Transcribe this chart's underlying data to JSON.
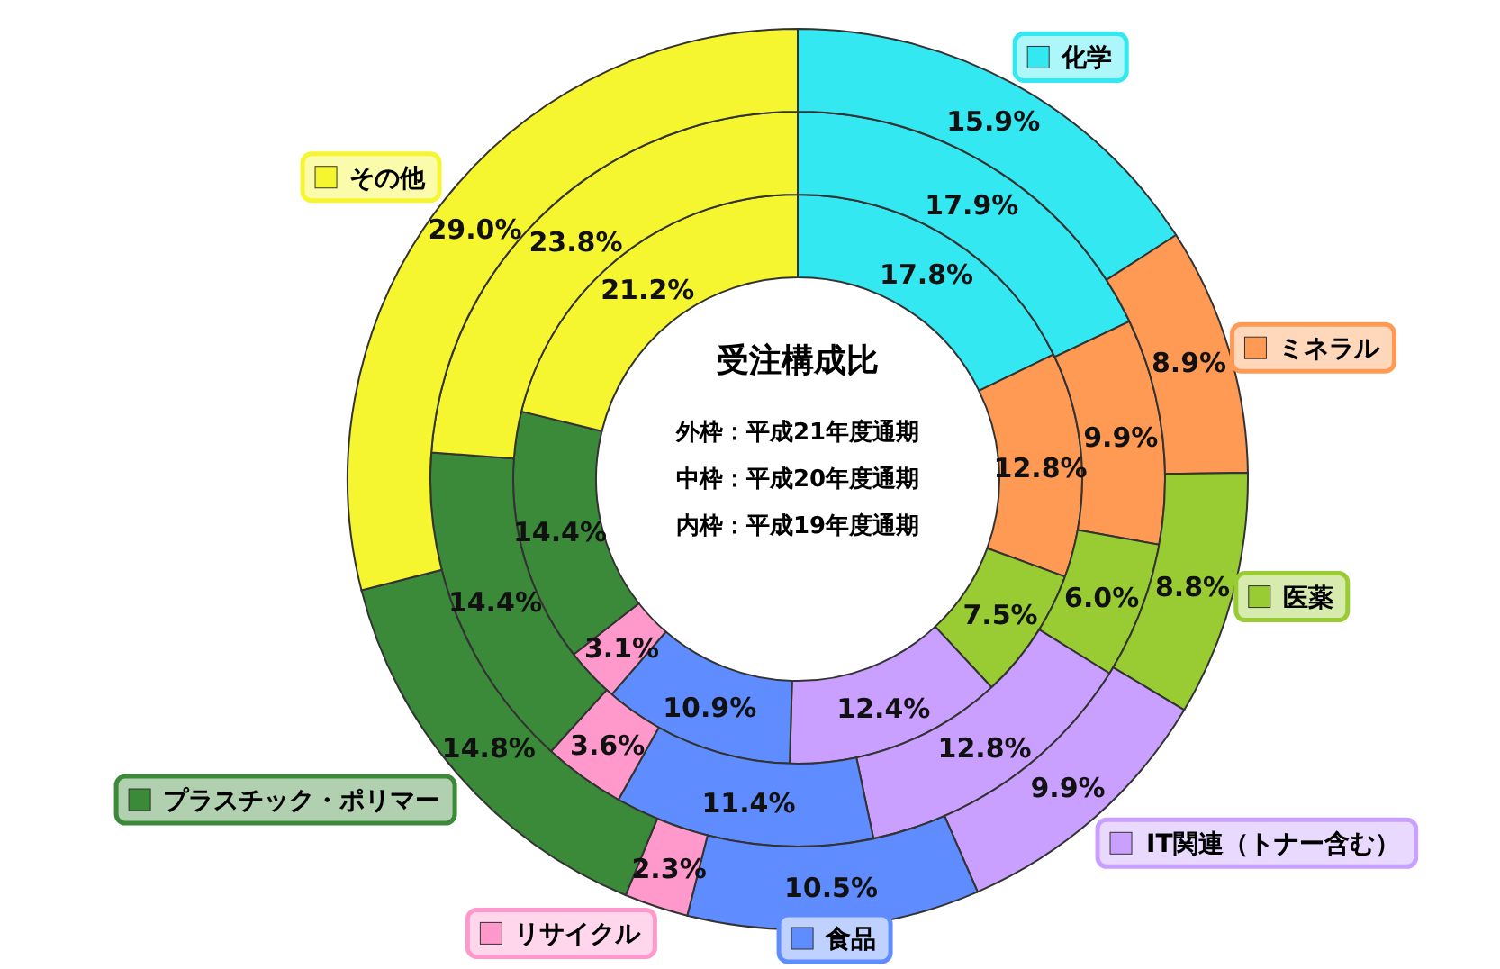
{
  "chart_data": {
    "type": "donut",
    "title": "受注構成比",
    "annotations": [
      "外枠：平成21年度通期",
      "中枠：平成20年度通期",
      "内枠：平成19年度通期"
    ],
    "categories": [
      "化学",
      "ミネラル",
      "医薬",
      "IT関連（トナー含む）",
      "食品",
      "リサイクル",
      "プラスチック・ポリマー",
      "その他"
    ],
    "legend": "right",
    "colors": [
      "#33e8f0",
      "#ff9a55",
      "#99cc33",
      "#c9a0ff",
      "#5f8cff",
      "#ff99cc",
      "#3a8a3a",
      "#f5f530"
    ],
    "series": [
      {
        "values": [
          17.8,
          12.8,
          7.5,
          12.4,
          10.9,
          3.1,
          14.4,
          21.2
        ],
        "value_labels": [
          "17.8%",
          "12.8%",
          "7.5%",
          "12.4%",
          "10.9%",
          "3.1%",
          "14.4%",
          "21.2%"
        ]
      },
      {
        "values": [
          17.9,
          9.9,
          6.0,
          12.8,
          11.4,
          3.6,
          14.4,
          23.8
        ],
        "value_labels": [
          "17.9%",
          "9.9%",
          "6.0%",
          "12.8%",
          "11.4%",
          "3.6%",
          "14.4%",
          "23.8%"
        ]
      },
      {
        "values": [
          15.9,
          8.9,
          8.8,
          9.9,
          10.5,
          2.3,
          14.8,
          29.0
        ],
        "value_labels": [
          "15.9%",
          "8.9%",
          "8.8%",
          "9.9%",
          "10.5%",
          "2.3%",
          "14.8%",
          "29.0%"
        ]
      }
    ]
  }
}
